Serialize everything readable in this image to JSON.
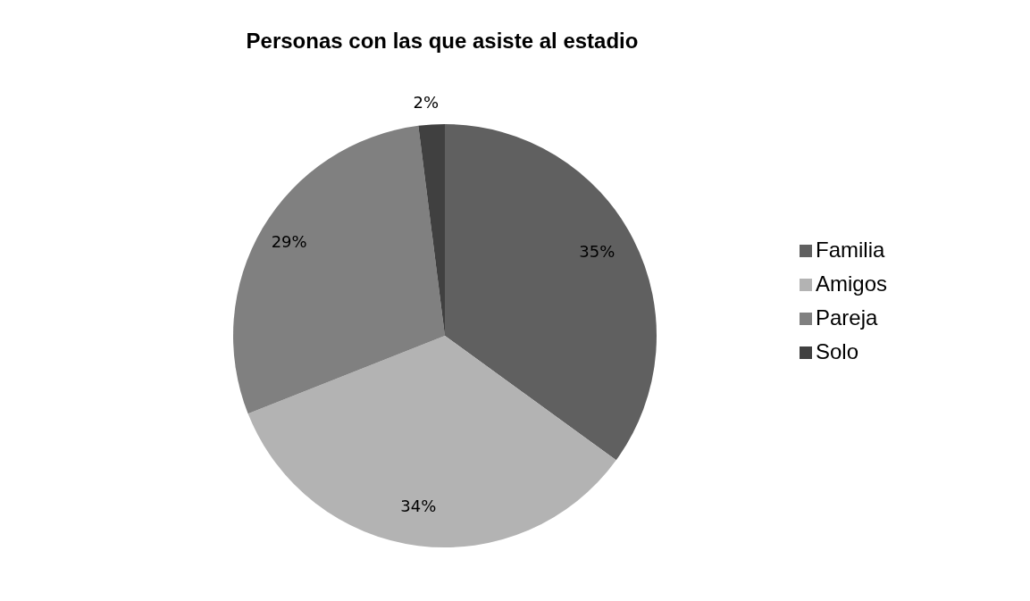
{
  "chart_data": {
    "type": "pie",
    "title": "Personas con las que asiste al estadio",
    "categories": [
      "Familia",
      "Amigos",
      "Pareja",
      "Solo"
    ],
    "values": [
      35,
      34,
      29,
      2
    ],
    "colors": [
      "#606060",
      "#b3b3b3",
      "#808080",
      "#404040"
    ],
    "value_labels": [
      "35%",
      "34%",
      "29%",
      "2%"
    ],
    "legend": "right"
  }
}
